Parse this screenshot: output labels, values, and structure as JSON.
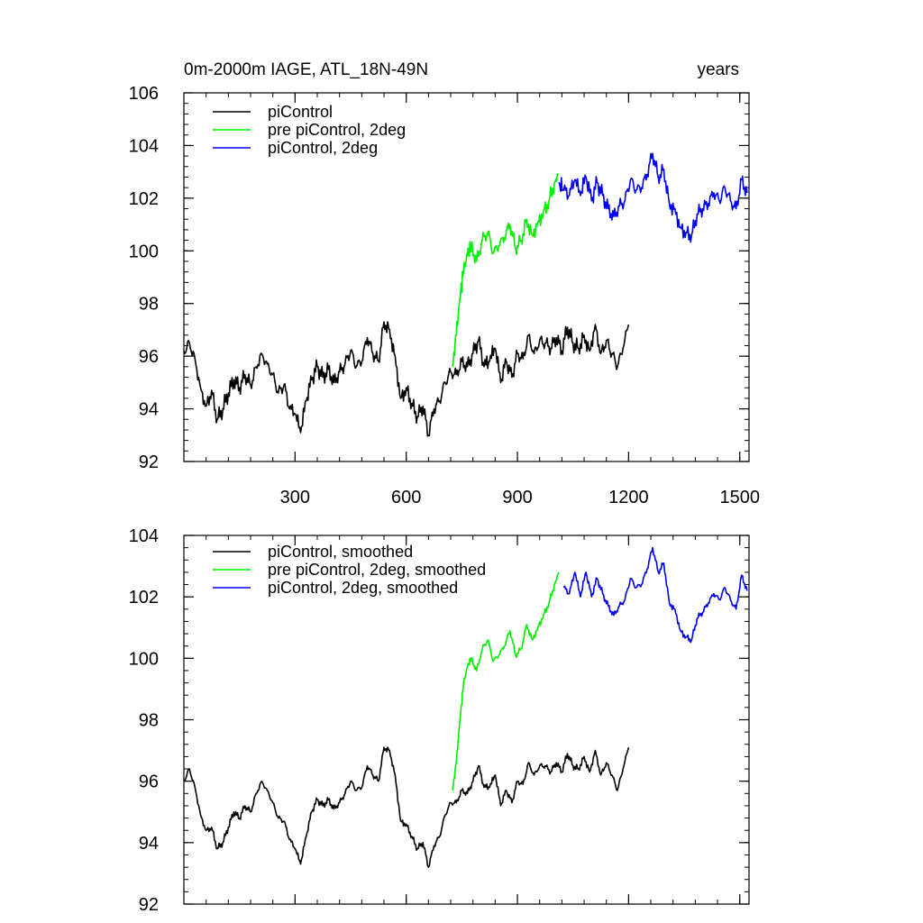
{
  "chart_data": [
    {
      "type": "line",
      "title_left": "0m-2000m IAGE, ATL_18N-49N",
      "title_right": "years",
      "xlim": [
        0,
        1525
      ],
      "ylim": [
        92,
        106
      ],
      "x_ticks": [
        300,
        600,
        900,
        1200,
        1500
      ],
      "x_tick_labels": [
        "300",
        "600",
        "900",
        "1200",
        "1500"
      ],
      "y_ticks": [
        92,
        94,
        96,
        98,
        100,
        102,
        104,
        106
      ],
      "y_tick_labels": [
        "92",
        "94",
        "96",
        "98",
        "100",
        "102",
        "104",
        "106"
      ],
      "legend_position": "top-left",
      "series": [
        {
          "name": "piControl",
          "color": "#000000",
          "x": [
            0,
            15,
            30,
            45,
            60,
            75,
            90,
            105,
            120,
            135,
            150,
            165,
            180,
            195,
            210,
            225,
            240,
            255,
            270,
            285,
            300,
            315,
            330,
            345,
            360,
            375,
            390,
            405,
            420,
            435,
            450,
            465,
            480,
            495,
            510,
            525,
            540,
            555,
            570,
            585,
            600,
            615,
            630,
            645,
            660,
            675,
            690,
            705,
            720,
            735,
            750,
            765,
            780,
            795,
            810,
            825,
            840,
            855,
            870,
            885,
            900,
            915,
            930,
            945,
            960,
            975,
            990,
            1005,
            1020,
            1035,
            1050,
            1065,
            1080,
            1095,
            1110,
            1125,
            1140,
            1155,
            1170,
            1185,
            1200
          ],
          "values": [
            96.2,
            96.5,
            95.9,
            94.8,
            94.1,
            94.7,
            93.6,
            94.0,
            94.6,
            95.1,
            94.8,
            95.3,
            94.9,
            95.6,
            96.1,
            95.7,
            95.3,
            94.6,
            94.9,
            94.0,
            93.8,
            93.1,
            94.3,
            95.1,
            95.6,
            95.2,
            95.5,
            95.0,
            95.4,
            95.7,
            96.2,
            95.6,
            95.8,
            96.7,
            96.1,
            95.8,
            97.3,
            97.0,
            96.0,
            94.4,
            94.8,
            94.2,
            93.7,
            94.1,
            93.0,
            94.0,
            94.3,
            95.0,
            95.4,
            95.3,
            95.8,
            95.6,
            96.1,
            96.6,
            95.6,
            95.8,
            96.3,
            95.0,
            95.8,
            95.2,
            96.1,
            95.9,
            96.8,
            96.1,
            96.6,
            96.5,
            96.3,
            96.7,
            96.2,
            97.1,
            96.5,
            96.3,
            96.8,
            96.2,
            97.2,
            96.1,
            96.6,
            96.1,
            95.6,
            96.3,
            97.2
          ]
        },
        {
          "name": "pre piControl, 2deg",
          "color": "#00ee00",
          "x": [
            725,
            735,
            745,
            755,
            765,
            775,
            790,
            805,
            820,
            835,
            850,
            865,
            880,
            895,
            910,
            925,
            940,
            955,
            970,
            985,
            1000,
            1012
          ],
          "values": [
            95.6,
            96.8,
            98.2,
            99.3,
            99.8,
            100.2,
            99.6,
            100.4,
            100.7,
            99.9,
            100.2,
            100.5,
            101.0,
            100.1,
            100.4,
            101.2,
            100.6,
            101.1,
            101.5,
            101.9,
            102.6,
            102.9
          ]
        },
        {
          "name": "piControl, 2deg",
          "color": "#0000ee",
          "x": [
            1012,
            1025,
            1040,
            1055,
            1070,
            1085,
            1100,
            1115,
            1130,
            1145,
            1160,
            1175,
            1190,
            1205,
            1220,
            1235,
            1250,
            1265,
            1280,
            1295,
            1310,
            1325,
            1340,
            1355,
            1370,
            1385,
            1400,
            1415,
            1430,
            1445,
            1460,
            1475,
            1490,
            1505,
            1520
          ],
          "values": [
            102.6,
            102.3,
            102.1,
            102.7,
            102.1,
            102.8,
            101.9,
            102.6,
            102.1,
            101.6,
            101.3,
            101.7,
            101.9,
            102.7,
            102.3,
            102.4,
            102.9,
            103.7,
            102.8,
            103.1,
            101.8,
            101.6,
            100.9,
            100.7,
            100.6,
            101.4,
            101.6,
            101.8,
            102.2,
            101.9,
            102.4,
            101.9,
            101.6,
            102.7,
            102.2
          ]
        }
      ]
    },
    {
      "type": "line",
      "xlim": [
        0,
        1525
      ],
      "ylim": [
        92,
        104
      ],
      "x_ticks": [
        300,
        600,
        900,
        1200,
        1500
      ],
      "y_ticks": [
        92,
        94,
        96,
        98,
        100,
        102,
        104
      ],
      "y_tick_labels": [
        "92",
        "94",
        "96",
        "98",
        "100",
        "102",
        "104"
      ],
      "legend_position": "top-left",
      "series": [
        {
          "name": "piControl, smoothed",
          "color": "#000000",
          "x": [
            0,
            15,
            30,
            45,
            60,
            75,
            90,
            105,
            120,
            135,
            150,
            165,
            180,
            195,
            210,
            225,
            240,
            255,
            270,
            285,
            300,
            315,
            330,
            345,
            360,
            375,
            390,
            405,
            420,
            435,
            450,
            465,
            480,
            495,
            510,
            525,
            540,
            555,
            570,
            585,
            600,
            615,
            630,
            645,
            660,
            675,
            690,
            705,
            720,
            735,
            750,
            765,
            780,
            795,
            810,
            825,
            840,
            855,
            870,
            885,
            900,
            915,
            930,
            945,
            960,
            975,
            990,
            1005,
            1020,
            1035,
            1050,
            1065,
            1080,
            1095,
            1110,
            1125,
            1140,
            1155,
            1170,
            1185,
            1200
          ],
          "values": [
            96.0,
            96.4,
            95.8,
            94.9,
            94.4,
            94.5,
            93.8,
            94.0,
            94.5,
            95.0,
            94.8,
            95.2,
            95.0,
            95.6,
            96.0,
            95.7,
            95.3,
            94.8,
            94.7,
            94.1,
            93.8,
            93.3,
            94.2,
            95.0,
            95.4,
            95.2,
            95.4,
            95.1,
            95.3,
            95.6,
            96.0,
            95.7,
            95.8,
            96.5,
            96.2,
            96.0,
            97.1,
            97.0,
            96.2,
            94.7,
            94.6,
            94.2,
            93.8,
            94.0,
            93.2,
            93.9,
            94.2,
            94.9,
            95.3,
            95.3,
            95.7,
            95.6,
            96.0,
            96.5,
            95.8,
            95.8,
            96.2,
            95.2,
            95.7,
            95.3,
            96.0,
            95.9,
            96.6,
            96.2,
            96.5,
            96.5,
            96.3,
            96.6,
            96.3,
            96.9,
            96.5,
            96.4,
            96.8,
            96.3,
            97.0,
            96.2,
            96.6,
            96.2,
            95.7,
            96.4,
            97.1
          ]
        },
        {
          "name": "pre piControl, 2deg, smoothed",
          "color": "#00ee00",
          "x": [
            725,
            735,
            745,
            755,
            765,
            775,
            790,
            805,
            820,
            835,
            850,
            865,
            880,
            895,
            910,
            925,
            940,
            955,
            970,
            985,
            1000,
            1012
          ],
          "values": [
            95.7,
            96.6,
            98.0,
            99.2,
            99.7,
            100.0,
            99.6,
            100.3,
            100.6,
            99.9,
            100.1,
            100.4,
            100.9,
            100.1,
            100.3,
            101.1,
            100.6,
            101.0,
            101.4,
            101.8,
            102.4,
            102.8
          ]
        },
        {
          "name": "piControl, 2deg, smoothed",
          "color": "#0000ee",
          "x": [
            1025,
            1040,
            1055,
            1070,
            1085,
            1100,
            1115,
            1130,
            1145,
            1160,
            1175,
            1190,
            1205,
            1220,
            1235,
            1250,
            1265,
            1280,
            1295,
            1310,
            1325,
            1340,
            1355,
            1370,
            1385,
            1400,
            1415,
            1430,
            1445,
            1460,
            1475,
            1490,
            1505,
            1520
          ],
          "values": [
            102.3,
            102.1,
            102.8,
            102.0,
            102.8,
            102.0,
            102.6,
            102.1,
            101.7,
            101.4,
            101.7,
            101.9,
            102.6,
            102.3,
            102.4,
            102.9,
            103.6,
            102.8,
            103.1,
            101.8,
            101.6,
            100.9,
            100.7,
            100.6,
            101.3,
            101.5,
            101.8,
            102.1,
            101.9,
            102.3,
            101.9,
            101.6,
            102.7,
            102.2
          ]
        }
      ]
    }
  ]
}
